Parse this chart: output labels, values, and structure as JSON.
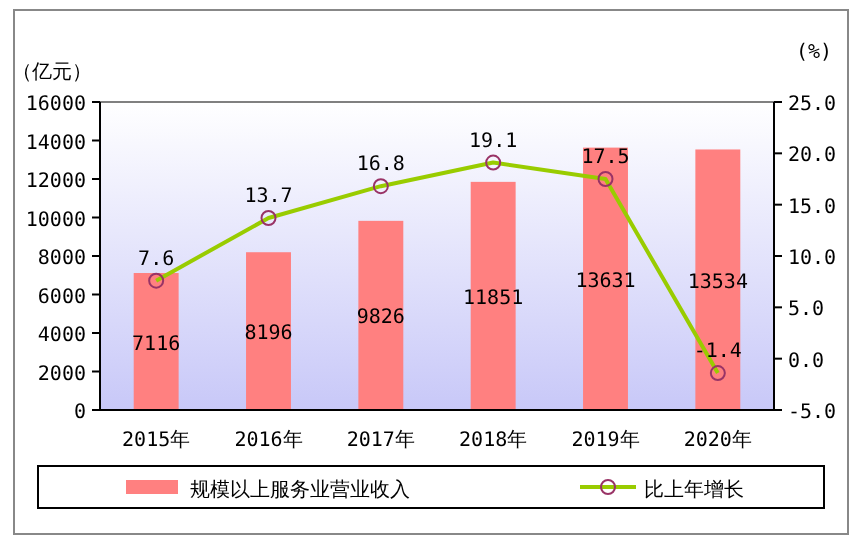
{
  "chart_data": {
    "type": "bar",
    "ylabel": "（亿元）",
    "y2label": "(%)",
    "categories": [
      "2015年",
      "2016年",
      "2017年",
      "2018年",
      "2019年",
      "2020年"
    ],
    "series": [
      {
        "name": "规模以上服务业营业收入",
        "color": "#ff8080",
        "values": [
          7116,
          8196,
          9826,
          11851,
          13631,
          13534
        ]
      },
      {
        "name": "比上年增长",
        "type": "line",
        "axis": "y2",
        "color": "#99cc00",
        "marker": "circle",
        "values": [
          7.6,
          13.7,
          16.8,
          19.1,
          17.5,
          -1.4
        ]
      }
    ],
    "data_labels": true,
    "ylim": [
      0,
      16000
    ],
    "yticks": [
      0,
      2000,
      4000,
      6000,
      8000,
      10000,
      12000,
      14000,
      16000
    ],
    "y2lim": [
      -5,
      25
    ],
    "y2ticks": [
      {
        "value": -5,
        "label": "-5.0"
      },
      {
        "value": 0,
        "label": "0.0"
      },
      {
        "value": 5,
        "label": "5.0"
      },
      {
        "value": 10,
        "label": "10.0"
      },
      {
        "value": 15,
        "label": "15.0"
      },
      {
        "value": 20,
        "label": "20.0"
      },
      {
        "value": 25,
        "label": "25.0"
      }
    ],
    "legend": "bottom",
    "grid": false
  }
}
